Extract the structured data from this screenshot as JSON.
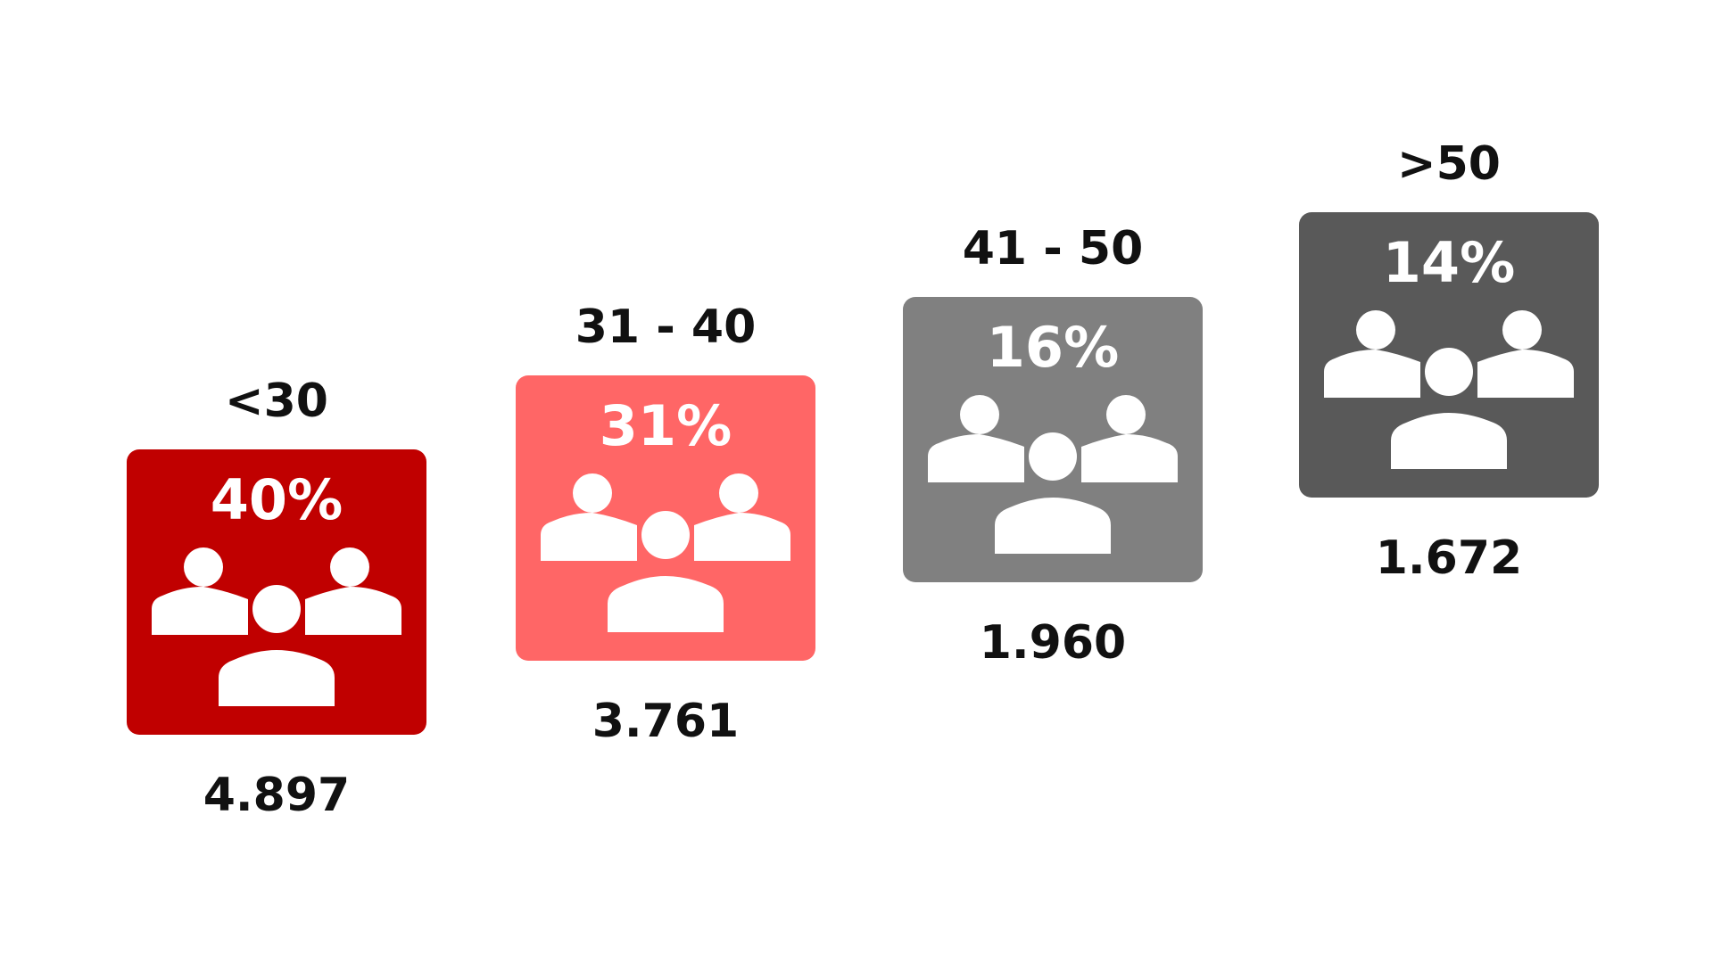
{
  "chart_data": {
    "type": "bar",
    "categories": [
      "<30",
      "31 - 40",
      "41 - 50",
      ">50"
    ],
    "percentages": [
      "40%",
      "31%",
      "16%",
      "14%"
    ],
    "values": [
      4897,
      3761,
      1960,
      1672
    ],
    "value_labels": [
      "4.897",
      "3.761",
      "1.960",
      "1.672"
    ],
    "colors": [
      "#c00000",
      "#ff6666",
      "#808080",
      "#595959"
    ],
    "icon": "people-group-icon",
    "title": "",
    "xlabel": "",
    "ylabel": ""
  }
}
